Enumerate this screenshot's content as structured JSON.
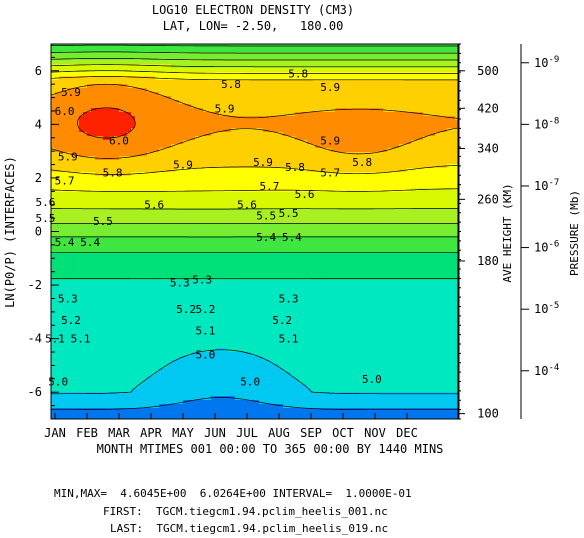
{
  "chart_data": {
    "type": "heatmap",
    "title": "LOG10 ELECTRON DENSITY (CM3)",
    "subtitle": "LAT, LON= -2.50,   180.00",
    "xlabel": "MONTH MTIMES 001 00:00 TO 365 00:00 BY 1440 MINS",
    "ylabel": "LN(P0/P) (INTERFACES)",
    "x_ticks": [
      "JAN",
      "FEB",
      "MAR",
      "APR",
      "MAY",
      "JUN",
      "JUL",
      "AUG",
      "SEP",
      "OCT",
      "NOV",
      "DEC"
    ],
    "ylim": [
      -7,
      7
    ],
    "y_ticks": [
      -6,
      -4,
      -2,
      0,
      2,
      4,
      6
    ],
    "right_axis_1": {
      "label": "AVE HEIGHT (KM)",
      "ticks": [
        {
          "value": "500",
          "zp": 6.0
        },
        {
          "value": "420",
          "zp": 4.6
        },
        {
          "value": "340",
          "zp": 3.1
        },
        {
          "value": "260",
          "zp": 1.2
        },
        {
          "value": "180",
          "zp": -1.1
        },
        {
          "value": "100",
          "zp": -6.8
        }
      ]
    },
    "right_axis_2": {
      "label": "PRESSURE (Mb)",
      "ticks": [
        {
          "base": "10",
          "exp": "-9",
          "zp": 6.3
        },
        {
          "base": "10",
          "exp": "-8",
          "zp": 4.0
        },
        {
          "base": "10",
          "exp": "-7",
          "zp": 1.7
        },
        {
          "base": "10",
          "exp": "-6",
          "zp": -0.6
        },
        {
          "base": "10",
          "exp": "-5",
          "zp": -2.9
        },
        {
          "base": "10",
          "exp": "-4",
          "zp": -5.2
        }
      ]
    },
    "contour_levels": [
      4.6,
      4.7,
      4.8,
      4.9,
      5.0,
      5.1,
      5.2,
      5.3,
      5.4,
      5.5,
      5.6,
      5.7,
      5.8,
      5.9,
      6.0
    ],
    "fill_colors": [
      "#0000aa",
      "#0077ee",
      "#00c8f0",
      "#00e8c0",
      "#00e078",
      "#40e640",
      "#78ec30",
      "#a8f020",
      "#d8f800",
      "#ffff00",
      "#ffd000",
      "#ff8c00",
      "#ff2200",
      "#ee0040",
      "#ff00dd",
      "#ff00ff"
    ],
    "contour_labels": [
      {
        "text": "5.9",
        "x": 0.5,
        "zp": 5.2
      },
      {
        "text": "5.8",
        "x": 5.5,
        "zp": 5.5
      },
      {
        "text": "5.8",
        "x": 7.6,
        "zp": 5.9
      },
      {
        "text": "5.9",
        "x": 8.6,
        "zp": 5.4
      },
      {
        "text": "6.0",
        "x": 0.3,
        "zp": 4.5
      },
      {
        "text": "6.0",
        "x": 2.0,
        "zp": 3.4
      },
      {
        "text": "5.9",
        "x": 5.3,
        "zp": 4.6
      },
      {
        "text": "5.9",
        "x": 0.4,
        "zp": 2.8
      },
      {
        "text": "5.8",
        "x": 1.8,
        "zp": 2.2
      },
      {
        "text": "5.7",
        "x": 0.3,
        "zp": 1.9
      },
      {
        "text": "5.6",
        "x": 3.1,
        "zp": 1.0
      },
      {
        "text": "5.6",
        "x": -0.3,
        "zp": 1.1
      },
      {
        "text": "5.9",
        "x": 4.0,
        "zp": 2.5
      },
      {
        "text": "5.9",
        "x": 6.5,
        "zp": 2.6
      },
      {
        "text": "5.8",
        "x": 7.5,
        "zp": 2.4
      },
      {
        "text": "5.7",
        "x": 6.7,
        "zp": 1.7
      },
      {
        "text": "5.6",
        "x": 6.0,
        "zp": 1.0
      },
      {
        "text": "5.6",
        "x": 7.8,
        "zp": 1.4
      },
      {
        "text": "5.7",
        "x": 8.6,
        "zp": 2.2
      },
      {
        "text": "5.8",
        "x": 9.6,
        "zp": 2.6
      },
      {
        "text": "5.9",
        "x": 8.6,
        "zp": 3.4
      },
      {
        "text": "5.5",
        "x": 6.6,
        "zp": 0.6
      },
      {
        "text": "5.5",
        "x": 7.3,
        "zp": 0.7
      },
      {
        "text": "5.5",
        "x": -0.3,
        "zp": 0.5
      },
      {
        "text": "5.5",
        "x": 1.5,
        "zp": 0.4
      },
      {
        "text": "5.4",
        "x": 0.3,
        "zp": -0.4
      },
      {
        "text": "5.4",
        "x": 1.1,
        "zp": -0.4
      },
      {
        "text": "5.4",
        "x": 6.6,
        "zp": -0.2
      },
      {
        "text": "5.4",
        "x": 7.4,
        "zp": -0.2
      },
      {
        "text": "5.3",
        "x": 0.4,
        "zp": -2.5
      },
      {
        "text": "5.3",
        "x": 3.9,
        "zp": -1.9
      },
      {
        "text": "5.3",
        "x": 4.6,
        "zp": -1.8
      },
      {
        "text": "5.3",
        "x": 7.3,
        "zp": -2.5
      },
      {
        "text": "5.2",
        "x": 0.5,
        "zp": -3.3
      },
      {
        "text": "5.2",
        "x": 4.1,
        "zp": -2.9
      },
      {
        "text": "5.2",
        "x": 4.7,
        "zp": -2.9
      },
      {
        "text": "5.2",
        "x": 7.1,
        "zp": -3.3
      },
      {
        "text": "5.1",
        "x": 0.0,
        "zp": -4.0
      },
      {
        "text": "5.1",
        "x": 0.8,
        "zp": -4.0
      },
      {
        "text": "5.1",
        "x": 4.7,
        "zp": -3.7
      },
      {
        "text": "5.1",
        "x": 7.3,
        "zp": -4.0
      },
      {
        "text": "5.0",
        "x": 0.1,
        "zp": -5.6
      },
      {
        "text": "5.0",
        "x": 4.7,
        "zp": -4.6
      },
      {
        "text": "5.0",
        "x": 6.1,
        "zp": -5.6
      },
      {
        "text": "5.0",
        "x": 9.9,
        "zp": -5.5
      }
    ],
    "footer": {
      "minmax": "MIN,MAX=  4.6045E+00  6.0264E+00 INTERVAL=  1.0000E-01",
      "first": "FIRST:  TGCM.tiegcm1.94.pclim_heelis_001.nc",
      "last": "LAST:  TGCM.tiegcm1.94.pclim_heelis_019.nc"
    }
  }
}
